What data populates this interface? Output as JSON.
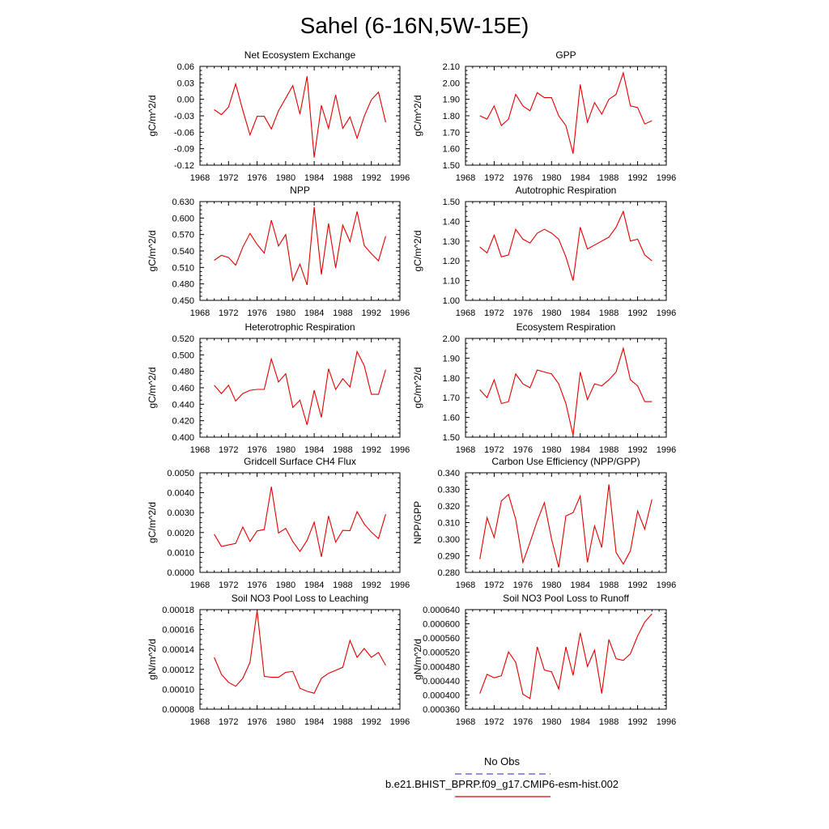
{
  "figure": {
    "title": "Sahel (6-16N,5W-15E)",
    "legend": {
      "entries": [
        {
          "label": "No Obs",
          "color": "#5050d0",
          "style": "dashed"
        },
        {
          "label": "b.e21.BHIST_BPRP.f09_g17.CMIP6-esm-hist.002",
          "color": "#e00000",
          "style": "solid"
        }
      ]
    },
    "series_color": "#e00000"
  },
  "chart_data": [
    {
      "type": "line",
      "title": "Net Ecosystem Exchange",
      "ylabel": "gC/m^2/d",
      "xlim": [
        1968,
        1996
      ],
      "ylim": [
        -0.12,
        0.06
      ],
      "xticks": [
        1968,
        1972,
        1976,
        1980,
        1984,
        1988,
        1992,
        1996
      ],
      "yticks": [
        -0.12,
        -0.09,
        -0.06,
        -0.03,
        0.0,
        0.03,
        0.06
      ],
      "ytick_labels": [
        "-0.12",
        "-0.09",
        "-0.06",
        "-0.03",
        "0.00",
        "0.03",
        "0.06"
      ],
      "x": [
        1970,
        1971,
        1972,
        1973,
        1974,
        1975,
        1976,
        1977,
        1978,
        1979,
        1980,
        1981,
        1982,
        1983,
        1984,
        1985,
        1986,
        1987,
        1988,
        1989,
        1990,
        1991,
        1992,
        1993,
        1994
      ],
      "y": [
        -0.019,
        -0.028,
        -0.014,
        0.028,
        -0.02,
        -0.065,
        -0.031,
        -0.031,
        -0.054,
        -0.021,
        0.002,
        0.025,
        -0.027,
        0.042,
        -0.106,
        -0.011,
        -0.053,
        0.008,
        -0.053,
        -0.032,
        -0.071,
        -0.031,
        -0.001,
        0.013,
        -0.042
      ]
    },
    {
      "type": "line",
      "title": "GPP",
      "ylabel": "gC/m^2/d",
      "xlim": [
        1968,
        1996
      ],
      "ylim": [
        1.5,
        2.1
      ],
      "xticks": [
        1968,
        1972,
        1976,
        1980,
        1984,
        1988,
        1992,
        1996
      ],
      "yticks": [
        1.5,
        1.6,
        1.7,
        1.8,
        1.9,
        2.0,
        2.1
      ],
      "ytick_labels": [
        "1.50",
        "1.60",
        "1.70",
        "1.80",
        "1.90",
        "2.00",
        "2.10"
      ],
      "x": [
        1970,
        1971,
        1972,
        1973,
        1974,
        1975,
        1976,
        1977,
        1978,
        1979,
        1980,
        1981,
        1982,
        1983,
        1984,
        1985,
        1986,
        1987,
        1988,
        1989,
        1990,
        1991,
        1992,
        1993,
        1994
      ],
      "y": [
        1.8,
        1.78,
        1.86,
        1.74,
        1.78,
        1.93,
        1.86,
        1.83,
        1.94,
        1.91,
        1.91,
        1.8,
        1.74,
        1.57,
        1.99,
        1.76,
        1.88,
        1.81,
        1.9,
        1.93,
        2.06,
        1.86,
        1.85,
        1.75,
        1.77
      ]
    },
    {
      "type": "line",
      "title": "NPP",
      "ylabel": "gC/m^2/d",
      "xlim": [
        1968,
        1996
      ],
      "ylim": [
        0.45,
        0.63
      ],
      "xticks": [
        1968,
        1972,
        1976,
        1980,
        1984,
        1988,
        1992,
        1996
      ],
      "yticks": [
        0.45,
        0.48,
        0.51,
        0.54,
        0.57,
        0.6,
        0.63
      ],
      "ytick_labels": [
        "0.450",
        "0.480",
        "0.510",
        "0.540",
        "0.570",
        "0.600",
        "0.630"
      ],
      "x": [
        1970,
        1971,
        1972,
        1973,
        1974,
        1975,
        1976,
        1977,
        1978,
        1979,
        1980,
        1981,
        1982,
        1983,
        1984,
        1985,
        1986,
        1987,
        1988,
        1989,
        1990,
        1991,
        1992,
        1993,
        1994
      ],
      "y": [
        0.523,
        0.532,
        0.528,
        0.514,
        0.547,
        0.572,
        0.552,
        0.536,
        0.596,
        0.549,
        0.57,
        0.486,
        0.516,
        0.478,
        0.62,
        0.497,
        0.59,
        0.509,
        0.587,
        0.557,
        0.612,
        0.55,
        0.535,
        0.522,
        0.567
      ]
    },
    {
      "type": "line",
      "title": "Autotrophic Respiration",
      "ylabel": "gC/m^2/d",
      "xlim": [
        1968,
        1996
      ],
      "ylim": [
        1.0,
        1.5
      ],
      "xticks": [
        1968,
        1972,
        1976,
        1980,
        1984,
        1988,
        1992,
        1996
      ],
      "yticks": [
        1.0,
        1.1,
        1.2,
        1.3,
        1.4,
        1.5
      ],
      "ytick_labels": [
        "1.00",
        "1.10",
        "1.20",
        "1.30",
        "1.40",
        "1.50"
      ],
      "x": [
        1970,
        1971,
        1972,
        1973,
        1974,
        1975,
        1976,
        1977,
        1978,
        1979,
        1980,
        1981,
        1982,
        1983,
        1984,
        1985,
        1986,
        1987,
        1988,
        1989,
        1990,
        1991,
        1992,
        1993,
        1994
      ],
      "y": [
        1.27,
        1.24,
        1.33,
        1.22,
        1.23,
        1.36,
        1.31,
        1.29,
        1.34,
        1.36,
        1.34,
        1.31,
        1.22,
        1.1,
        1.37,
        1.26,
        1.28,
        1.3,
        1.32,
        1.37,
        1.45,
        1.3,
        1.31,
        1.23,
        1.2
      ]
    },
    {
      "type": "line",
      "title": "Heterotrophic Respiration",
      "ylabel": "gC/m^2/d",
      "xlim": [
        1968,
        1996
      ],
      "ylim": [
        0.4,
        0.52
      ],
      "xticks": [
        1968,
        1972,
        1976,
        1980,
        1984,
        1988,
        1992,
        1996
      ],
      "yticks": [
        0.4,
        0.42,
        0.44,
        0.46,
        0.48,
        0.5,
        0.52
      ],
      "ytick_labels": [
        "0.400",
        "0.420",
        "0.440",
        "0.460",
        "0.480",
        "0.500",
        "0.520"
      ],
      "x": [
        1970,
        1971,
        1972,
        1973,
        1974,
        1975,
        1976,
        1977,
        1978,
        1979,
        1980,
        1981,
        1982,
        1983,
        1984,
        1985,
        1986,
        1987,
        1988,
        1989,
        1990,
        1991,
        1992,
        1993,
        1994
      ],
      "y": [
        0.463,
        0.453,
        0.463,
        0.444,
        0.453,
        0.457,
        0.458,
        0.458,
        0.495,
        0.467,
        0.477,
        0.436,
        0.445,
        0.415,
        0.457,
        0.424,
        0.483,
        0.458,
        0.471,
        0.461,
        0.504,
        0.487,
        0.452,
        0.452,
        0.482
      ]
    },
    {
      "type": "line",
      "title": "Ecosystem Respiration",
      "ylabel": "gC/m^2/d",
      "xlim": [
        1968,
        1996
      ],
      "ylim": [
        1.5,
        2.0
      ],
      "xticks": [
        1968,
        1972,
        1976,
        1980,
        1984,
        1988,
        1992,
        1996
      ],
      "yticks": [
        1.5,
        1.6,
        1.7,
        1.8,
        1.9,
        2.0
      ],
      "ytick_labels": [
        "1.50",
        "1.60",
        "1.70",
        "1.80",
        "1.90",
        "2.00"
      ],
      "x": [
        1970,
        1971,
        1972,
        1973,
        1974,
        1975,
        1976,
        1977,
        1978,
        1979,
        1980,
        1981,
        1982,
        1983,
        1984,
        1985,
        1986,
        1987,
        1988,
        1989,
        1990,
        1991,
        1992,
        1993,
        1994
      ],
      "y": [
        1.74,
        1.7,
        1.79,
        1.67,
        1.68,
        1.82,
        1.77,
        1.75,
        1.84,
        1.83,
        1.82,
        1.77,
        1.67,
        1.51,
        1.83,
        1.69,
        1.77,
        1.76,
        1.79,
        1.83,
        1.95,
        1.79,
        1.76,
        1.68,
        1.68
      ]
    },
    {
      "type": "line",
      "title": "Gridcell Surface CH4 Flux",
      "ylabel": "gC/m^2/d",
      "xlim": [
        1968,
        1996
      ],
      "ylim": [
        0.0,
        0.005
      ],
      "xticks": [
        1968,
        1972,
        1976,
        1980,
        1984,
        1988,
        1992,
        1996
      ],
      "yticks": [
        0.0,
        0.001,
        0.002,
        0.003,
        0.004,
        0.005
      ],
      "ytick_labels": [
        "0.0000",
        "0.0010",
        "0.0020",
        "0.0030",
        "0.0040",
        "0.0050"
      ],
      "x": [
        1970,
        1971,
        1972,
        1973,
        1974,
        1975,
        1976,
        1977,
        1978,
        1979,
        1980,
        1981,
        1982,
        1983,
        1984,
        1985,
        1986,
        1987,
        1988,
        1989,
        1990,
        1991,
        1992,
        1993,
        1994
      ],
      "y": [
        0.00192,
        0.0013,
        0.00138,
        0.00145,
        0.00228,
        0.00155,
        0.00208,
        0.00215,
        0.0043,
        0.00198,
        0.00221,
        0.00155,
        0.00105,
        0.0016,
        0.00252,
        0.00078,
        0.00283,
        0.00152,
        0.00211,
        0.00209,
        0.00305,
        0.00243,
        0.00202,
        0.0017,
        0.00292
      ]
    },
    {
      "type": "line",
      "title": "Carbon Use Efficiency (NPP/GPP)",
      "ylabel": "NPP/GPP",
      "xlim": [
        1968,
        1996
      ],
      "ylim": [
        0.28,
        0.34
      ],
      "xticks": [
        1968,
        1972,
        1976,
        1980,
        1984,
        1988,
        1992,
        1996
      ],
      "yticks": [
        0.28,
        0.29,
        0.3,
        0.31,
        0.32,
        0.33,
        0.34
      ],
      "ytick_labels": [
        "0.280",
        "0.290",
        "0.300",
        "0.310",
        "0.320",
        "0.330",
        "0.340"
      ],
      "x": [
        1970,
        1971,
        1972,
        1973,
        1974,
        1975,
        1976,
        1977,
        1978,
        1979,
        1980,
        1981,
        1982,
        1983,
        1984,
        1985,
        1986,
        1987,
        1988,
        1989,
        1990,
        1991,
        1992,
        1993,
        1994
      ],
      "y": [
        0.288,
        0.313,
        0.301,
        0.323,
        0.327,
        0.312,
        0.286,
        0.298,
        0.311,
        0.322,
        0.3,
        0.283,
        0.314,
        0.316,
        0.326,
        0.286,
        0.308,
        0.295,
        0.333,
        0.292,
        0.285,
        0.293,
        0.317,
        0.306,
        0.324
      ]
    },
    {
      "type": "line",
      "title": "Soil NO3 Pool Loss to Leaching",
      "ylabel": "gN/m^2/d",
      "xlim": [
        1968,
        1996
      ],
      "ylim": [
        8e-05,
        0.00018
      ],
      "xticks": [
        1968,
        1972,
        1976,
        1980,
        1984,
        1988,
        1992,
        1996
      ],
      "yticks": [
        8e-05,
        0.0001,
        0.00012,
        0.00014,
        0.00016,
        0.00018
      ],
      "ytick_labels": [
        "0.00008",
        "0.00010",
        "0.00012",
        "0.00014",
        "0.00016",
        "0.00018"
      ],
      "x": [
        1970,
        1971,
        1972,
        1973,
        1974,
        1975,
        1976,
        1977,
        1978,
        1979,
        1980,
        1981,
        1982,
        1983,
        1984,
        1985,
        1986,
        1987,
        1988,
        1989,
        1990,
        1991,
        1992,
        1993,
        1994
      ],
      "y": [
        0.000132,
        0.000115,
        0.000107,
        0.000103,
        0.000111,
        0.000127,
        0.000179,
        0.000113,
        0.000112,
        0.000112,
        0.000117,
        0.000118,
        0.000101,
        9.8e-05,
        9.6e-05,
        0.000111,
        0.000116,
        0.000119,
        0.000122,
        0.000149,
        0.000132,
        0.000141,
        0.000132,
        0.000137,
        0.000124
      ]
    },
    {
      "type": "line",
      "title": "Soil NO3 Pool Loss to Runoff",
      "ylabel": "gN/m^2/d",
      "xlim": [
        1968,
        1996
      ],
      "ylim": [
        0.00036,
        0.00064
      ],
      "xticks": [
        1968,
        1972,
        1976,
        1980,
        1984,
        1988,
        1992,
        1996
      ],
      "yticks": [
        0.00036,
        0.0004,
        0.00044,
        0.00048,
        0.00052,
        0.00056,
        0.0006,
        0.00064
      ],
      "ytick_labels": [
        "0.000360",
        "0.000400",
        "0.000440",
        "0.000480",
        "0.000520",
        "0.000560",
        "0.000600",
        "0.000640"
      ],
      "x": [
        1970,
        1971,
        1972,
        1973,
        1974,
        1975,
        1976,
        1977,
        1978,
        1979,
        1980,
        1981,
        1982,
        1983,
        1984,
        1985,
        1986,
        1987,
        1988,
        1989,
        1990,
        1991,
        1992,
        1993,
        1994
      ],
      "y": [
        0.000404,
        0.000458,
        0.000448,
        0.000454,
        0.000521,
        0.000492,
        0.000402,
        0.00039,
        0.000535,
        0.00047,
        0.000465,
        0.000417,
        0.000535,
        0.000455,
        0.000575,
        0.00048,
        0.000526,
        0.000404,
        0.000556,
        0.000502,
        0.000497,
        0.000516,
        0.000566,
        0.000605,
        0.000628
      ]
    }
  ]
}
